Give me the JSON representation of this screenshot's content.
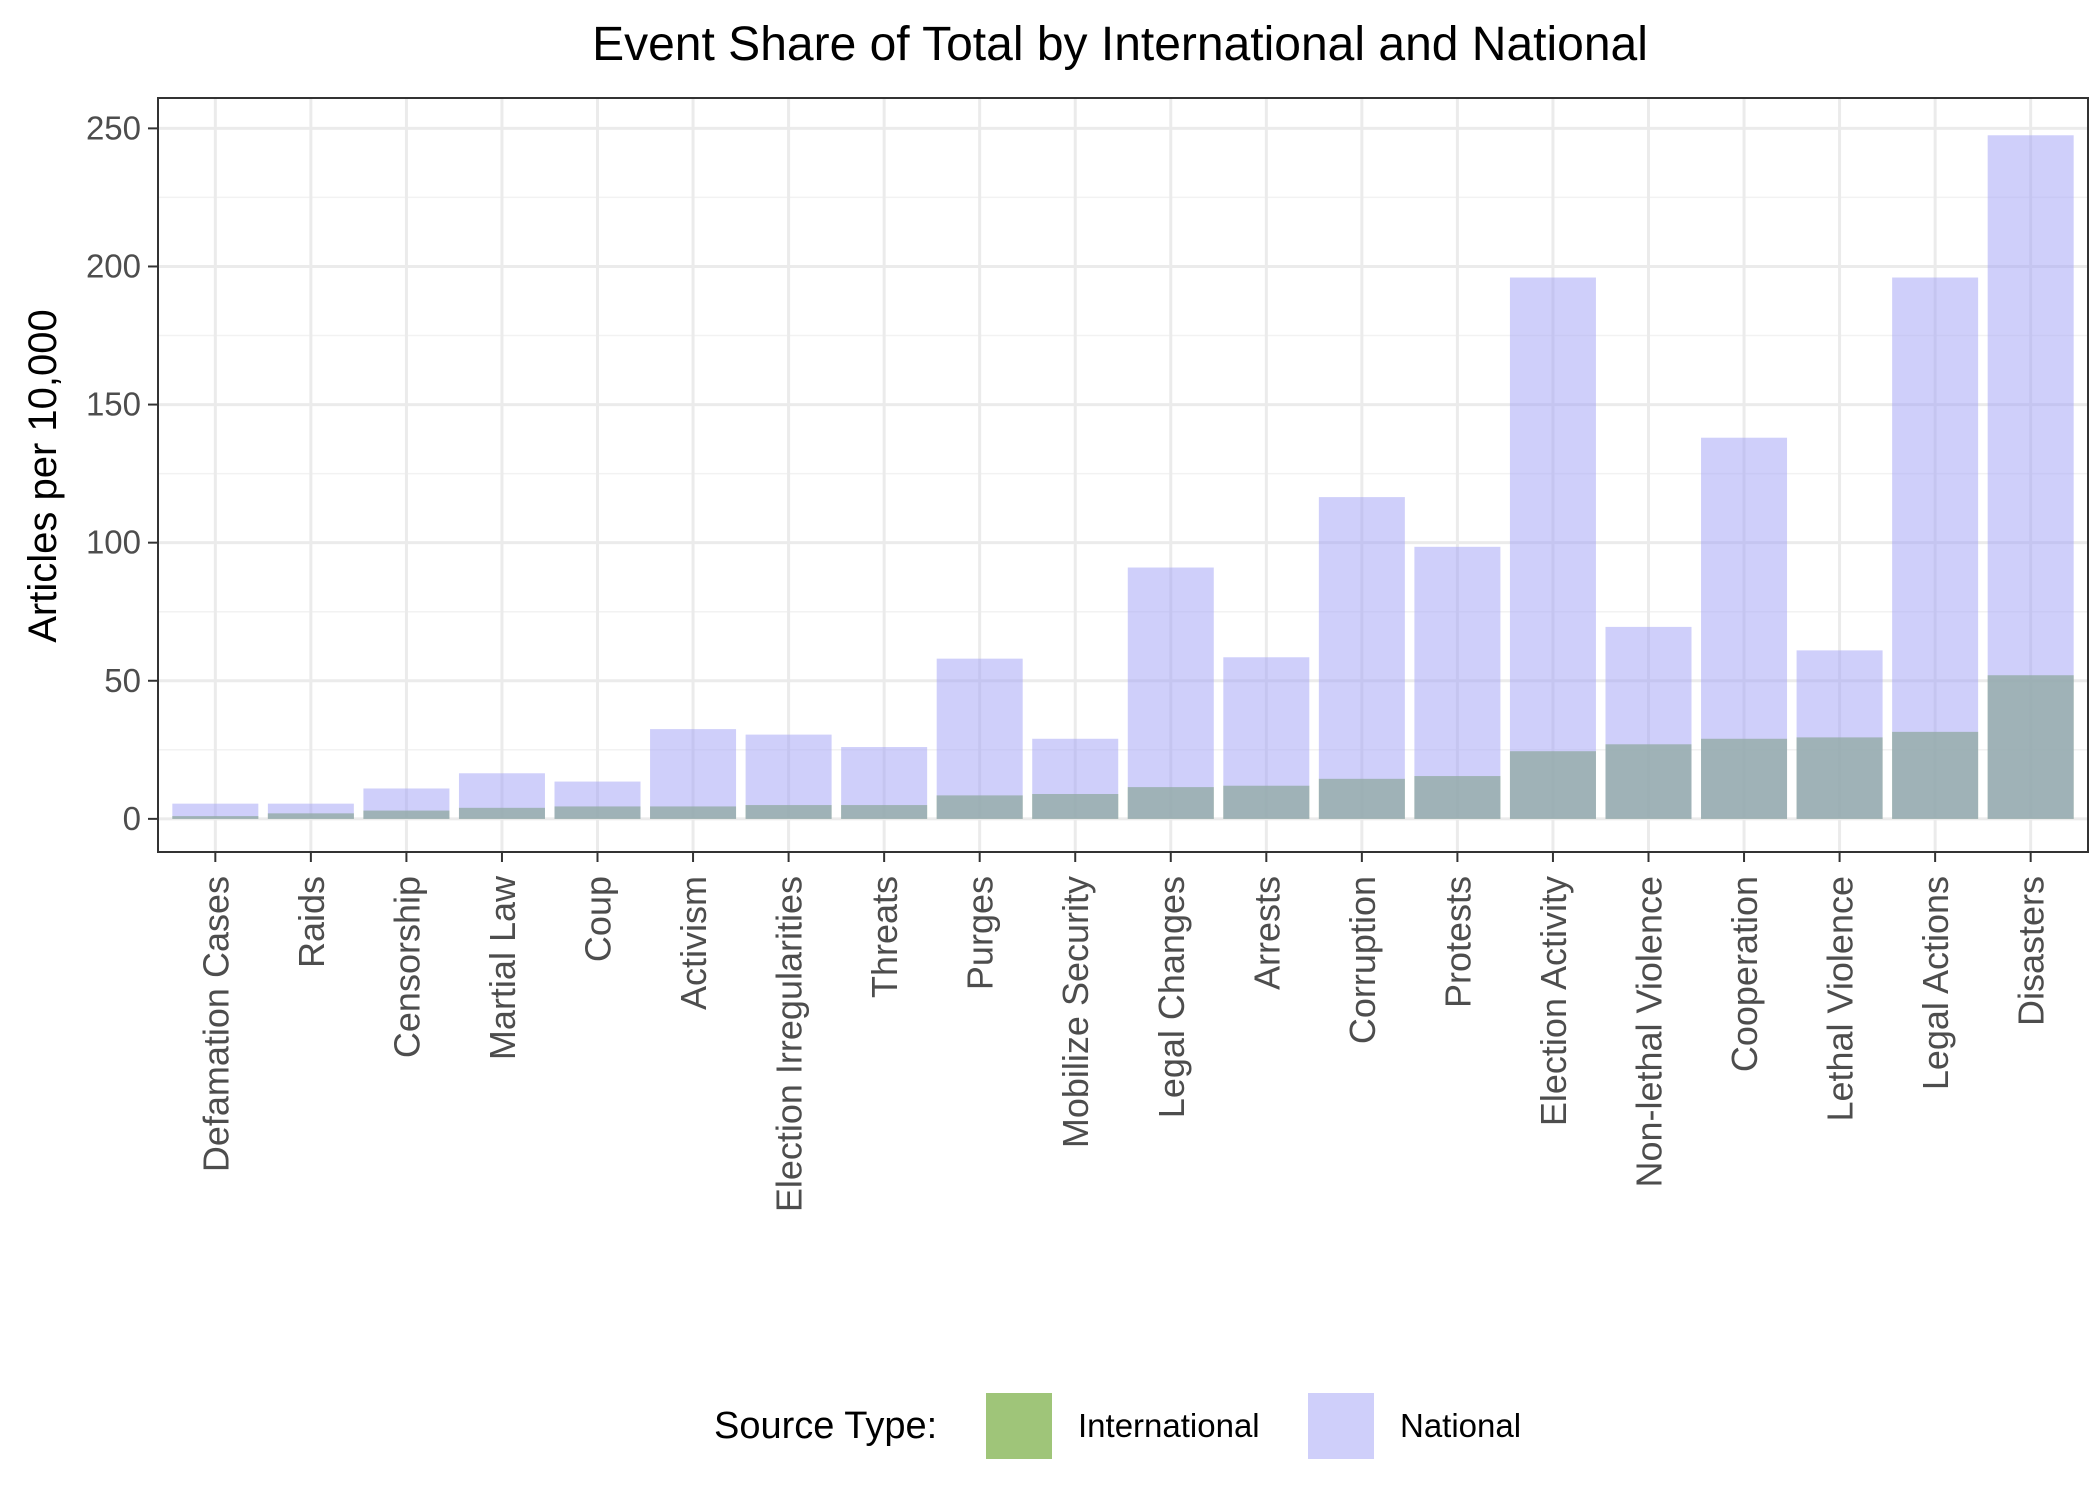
{
  "chart_data": {
    "type": "bar",
    "title": "Event Share of Total by International and National",
    "xlabel": "",
    "ylabel": "Articles per 10,000",
    "ylim": [
      -12,
      261
    ],
    "yticks": [
      0,
      50,
      100,
      150,
      200,
      250
    ],
    "grid": true,
    "overlay": true,
    "legend": {
      "title": "Source Type:",
      "position": "bottom"
    },
    "categories": [
      "Defamation Cases",
      "Raids",
      "Censorship",
      "Martial Law",
      "Coup",
      "Activism",
      "Election Irregularities",
      "Threats",
      "Purges",
      "Mobilize Security",
      "Legal Changes",
      "Arrests",
      "Corruption",
      "Protests",
      "Election Activity",
      "Non-lethal Violence",
      "Cooperation",
      "Lethal Violence",
      "Legal Actions",
      "Disasters"
    ],
    "series": [
      {
        "name": "International",
        "color": "#7fb24c",
        "opacity": 0.75,
        "values": [
          1,
          2,
          3,
          4,
          4.5,
          4.5,
          5,
          5,
          8.5,
          9,
          11.5,
          12,
          14.5,
          15.5,
          24.5,
          27,
          29,
          29.5,
          31.5,
          52
        ]
      },
      {
        "name": "National",
        "color": "#9f9ff5",
        "opacity": 0.5,
        "values": [
          5.5,
          5.5,
          11,
          16.5,
          13.5,
          32.5,
          30.5,
          26,
          58,
          29,
          91,
          58.5,
          116.5,
          98.5,
          196,
          69.5,
          138,
          61,
          196,
          247.5
        ]
      }
    ]
  }
}
